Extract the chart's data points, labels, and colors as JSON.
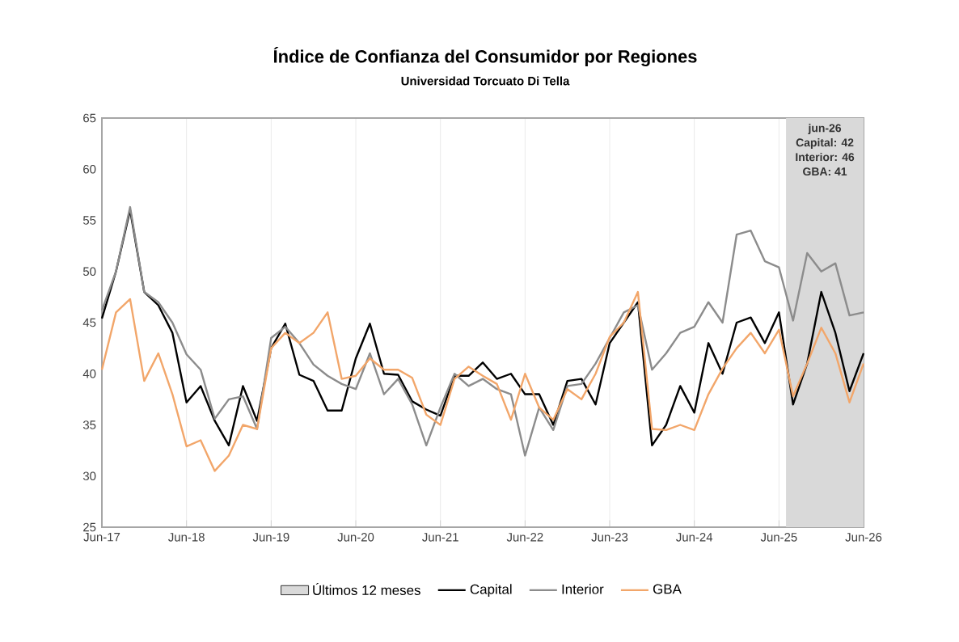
{
  "chart_data": {
    "type": "line",
    "title": "Índice de Confianza del Consumidor por Regiones",
    "subtitle": "Universidad Torcuato Di Tella",
    "annotations": [
      "jun-26",
      "Capital: 42",
      "Interior: 46",
      "GBA: 41"
    ],
    "x": [
      "2017-06",
      "2017-08",
      "2017-10",
      "2017-12",
      "2018-02",
      "2018-04",
      "2018-06",
      "2018-08",
      "2018-10",
      "2018-12",
      "2019-02",
      "2019-04",
      "2019-06",
      "2019-08",
      "2019-10",
      "2019-12",
      "2020-02",
      "2020-04",
      "2020-06",
      "2020-08",
      "2020-10",
      "2020-12",
      "2021-02",
      "2021-04",
      "2021-06",
      "2021-08",
      "2021-10",
      "2021-12",
      "2022-02",
      "2022-04",
      "2022-06",
      "2022-08",
      "2022-10",
      "2022-12",
      "2023-02",
      "2023-04",
      "2023-06",
      "2023-08",
      "2023-10",
      "2023-12",
      "2024-02",
      "2024-04",
      "2024-06",
      "2024-08",
      "2024-10",
      "2024-12",
      "2025-02",
      "2025-04",
      "2025-06",
      "2025-08",
      "2025-10",
      "2025-12",
      "2026-02",
      "2026-04",
      "2026-06"
    ],
    "series": [
      {
        "name": "Capital",
        "color": "#000000",
        "values": [
          45.4,
          50,
          56,
          48,
          46.7,
          44,
          37.2,
          38.8,
          35.4,
          33,
          38.8,
          35.4,
          42.5,
          44.9,
          39.9,
          39.3,
          36.4,
          36.4,
          41.5,
          44.9,
          40,
          39.9,
          37.3,
          36.5,
          35.9,
          39.8,
          39.8,
          41.1,
          39.5,
          40,
          38,
          38,
          35,
          39.3,
          39.5,
          37,
          43,
          45,
          47,
          33,
          35,
          38.8,
          36.2,
          43,
          40,
          45,
          45.5,
          43,
          46,
          37,
          41,
          48,
          44,
          38.3,
          42
        ]
      },
      {
        "name": "Interior",
        "color": "#8c8c8c",
        "values": [
          46.2,
          50,
          56.3,
          48,
          47,
          45,
          41.9,
          40.4,
          35.6,
          37.5,
          37.8,
          34.6,
          43.5,
          44.6,
          43,
          40.9,
          39.8,
          39,
          38.5,
          42,
          38,
          39.5,
          37,
          33,
          36.7,
          40,
          38.8,
          39.5,
          38.5,
          38,
          32,
          36.7,
          34.5,
          38.8,
          39,
          41,
          43.5,
          46,
          46.7,
          40.4,
          42,
          44,
          44.6,
          47,
          45,
          53.6,
          54,
          51,
          50.4,
          45.2,
          51.8,
          50,
          50.8,
          45.7,
          46
        ]
      },
      {
        "name": "GBA",
        "color": "#f2a66a",
        "values": [
          40.4,
          46,
          47.3,
          39.3,
          42,
          38,
          32.9,
          33.5,
          30.5,
          32,
          35,
          34.6,
          42.5,
          44,
          43,
          44,
          46,
          39.5,
          39.8,
          41.5,
          40.4,
          40.4,
          39.6,
          36,
          35,
          39.5,
          40.7,
          39.8,
          39,
          35.5,
          40,
          36.7,
          35.5,
          38.5,
          37.5,
          40,
          43.6,
          45,
          48,
          34.6,
          34.5,
          35,
          34.5,
          38,
          40.5,
          42.5,
          44,
          42,
          44.3,
          37.8,
          41,
          44.5,
          42,
          37.2,
          41
        ]
      }
    ],
    "bands": [
      {
        "axis": "x",
        "from": "2025-07",
        "to": "2026-06",
        "label": "Últimos 12 meses",
        "color": "#d9d9d9"
      }
    ],
    "xlim": [
      "2017-06",
      "2026-06"
    ],
    "xticks": [
      {
        "value": "2017-06",
        "label": "Jun-17"
      },
      {
        "value": "2018-06",
        "label": "Jun-18"
      },
      {
        "value": "2019-06",
        "label": "Jun-19"
      },
      {
        "value": "2020-06",
        "label": "Jun-20"
      },
      {
        "value": "2021-06",
        "label": "Jun-21"
      },
      {
        "value": "2022-06",
        "label": "Jun-22"
      },
      {
        "value": "2023-06",
        "label": "Jun-23"
      },
      {
        "value": "2024-06",
        "label": "Jun-24"
      },
      {
        "value": "2025-06",
        "label": "Jun-25"
      },
      {
        "value": "2026-06",
        "label": "Jun-26"
      }
    ],
    "ylim": [
      25,
      65
    ],
    "yticks": [
      25,
      30,
      35,
      40,
      45,
      50,
      55,
      60,
      65
    ],
    "grid": "x",
    "legend": "bottom",
    "marker": "none",
    "line_style": "solid"
  }
}
